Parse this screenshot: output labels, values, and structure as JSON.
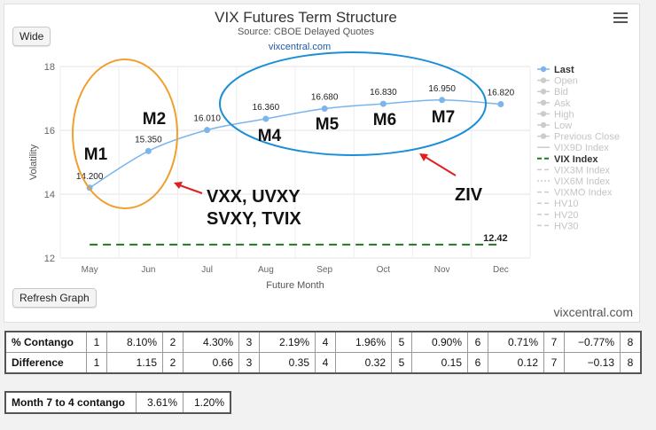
{
  "buttons": {
    "wide": "Wide",
    "refresh": "Refresh Graph"
  },
  "site": "vixcentral.com",
  "chart_data": {
    "type": "line",
    "title": "VIX Futures Term Structure",
    "subtitle": "Source: CBOE Delayed Quotes",
    "source_link": "vixcentral.com",
    "xlabel": "Future Month",
    "ylabel": "Volatility",
    "categories": [
      "May",
      "Jun",
      "Jul",
      "Aug",
      "Sep",
      "Oct",
      "Nov",
      "Dec"
    ],
    "ylim": [
      12,
      18
    ],
    "yticks": [
      12,
      14,
      16,
      18
    ],
    "grid": true,
    "series": [
      {
        "name": "Last",
        "values": [
          14.2,
          15.35,
          16.01,
          16.36,
          16.68,
          16.83,
          16.95,
          16.82
        ],
        "labels": [
          "14.200",
          "15.350",
          "16.010",
          "16.360",
          "16.680",
          "16.830",
          "16.950",
          "16.820"
        ],
        "color": "#7cb5ec"
      },
      {
        "name": "VIX Index",
        "values": [
          12.42,
          12.42,
          12.42,
          12.42,
          12.42,
          12.42,
          12.42,
          12.42
        ],
        "end_label": "12.42",
        "color": "#1f7a1f"
      }
    ],
    "legend": {
      "placement": "right",
      "items": [
        {
          "name": "Last",
          "active": true,
          "marker": "circle"
        },
        {
          "name": "Open",
          "active": false,
          "marker": "diamond"
        },
        {
          "name": "Bid",
          "active": false,
          "marker": "square"
        },
        {
          "name": "Ask",
          "active": false,
          "marker": "triangle"
        },
        {
          "name": "High",
          "active": false,
          "marker": "triangle-down"
        },
        {
          "name": "Low",
          "active": false,
          "marker": "circle"
        },
        {
          "name": "Previous Close",
          "active": false,
          "marker": "diamond"
        },
        {
          "name": "VIX9D Index",
          "active": false,
          "marker": "line"
        },
        {
          "name": "VIX Index",
          "active": true,
          "marker": "dash"
        },
        {
          "name": "VIX3M Index",
          "active": false,
          "marker": "dash"
        },
        {
          "name": "VIX6M Index",
          "active": false,
          "marker": "dot"
        },
        {
          "name": "VIXMO Index",
          "active": false,
          "marker": "dash"
        },
        {
          "name": "HV10",
          "active": false,
          "marker": "dash"
        },
        {
          "name": "HV20",
          "active": false,
          "marker": "dash"
        },
        {
          "name": "HV30",
          "active": false,
          "marker": "dash"
        }
      ]
    },
    "annotations": {
      "month_labels": [
        "M1",
        "M2",
        "M4",
        "M5",
        "M6",
        "M7"
      ],
      "left_text": [
        "VXX, UVXY",
        "SVXY, TVIX"
      ],
      "right_text": "ZIV"
    }
  },
  "contango_table": {
    "rows": [
      {
        "label": "% Contango",
        "cells": [
          [
            "1",
            "8.10%"
          ],
          [
            "2",
            "4.30%"
          ],
          [
            "3",
            "2.19%"
          ],
          [
            "4",
            "1.96%"
          ],
          [
            "5",
            "0.90%"
          ],
          [
            "6",
            "0.71%"
          ],
          [
            "7",
            "−0.77%"
          ]
        ],
        "last": "8"
      },
      {
        "label": "Difference",
        "cells": [
          [
            "1",
            "1.15"
          ],
          [
            "2",
            "0.66"
          ],
          [
            "3",
            "0.35"
          ],
          [
            "4",
            "0.32"
          ],
          [
            "5",
            "0.15"
          ],
          [
            "6",
            "0.12"
          ],
          [
            "7",
            "−0.13"
          ]
        ],
        "last": "8"
      }
    ]
  },
  "month_table": {
    "label": "Month 7 to 4 contango",
    "values": [
      "3.61%",
      "1.20%"
    ]
  }
}
